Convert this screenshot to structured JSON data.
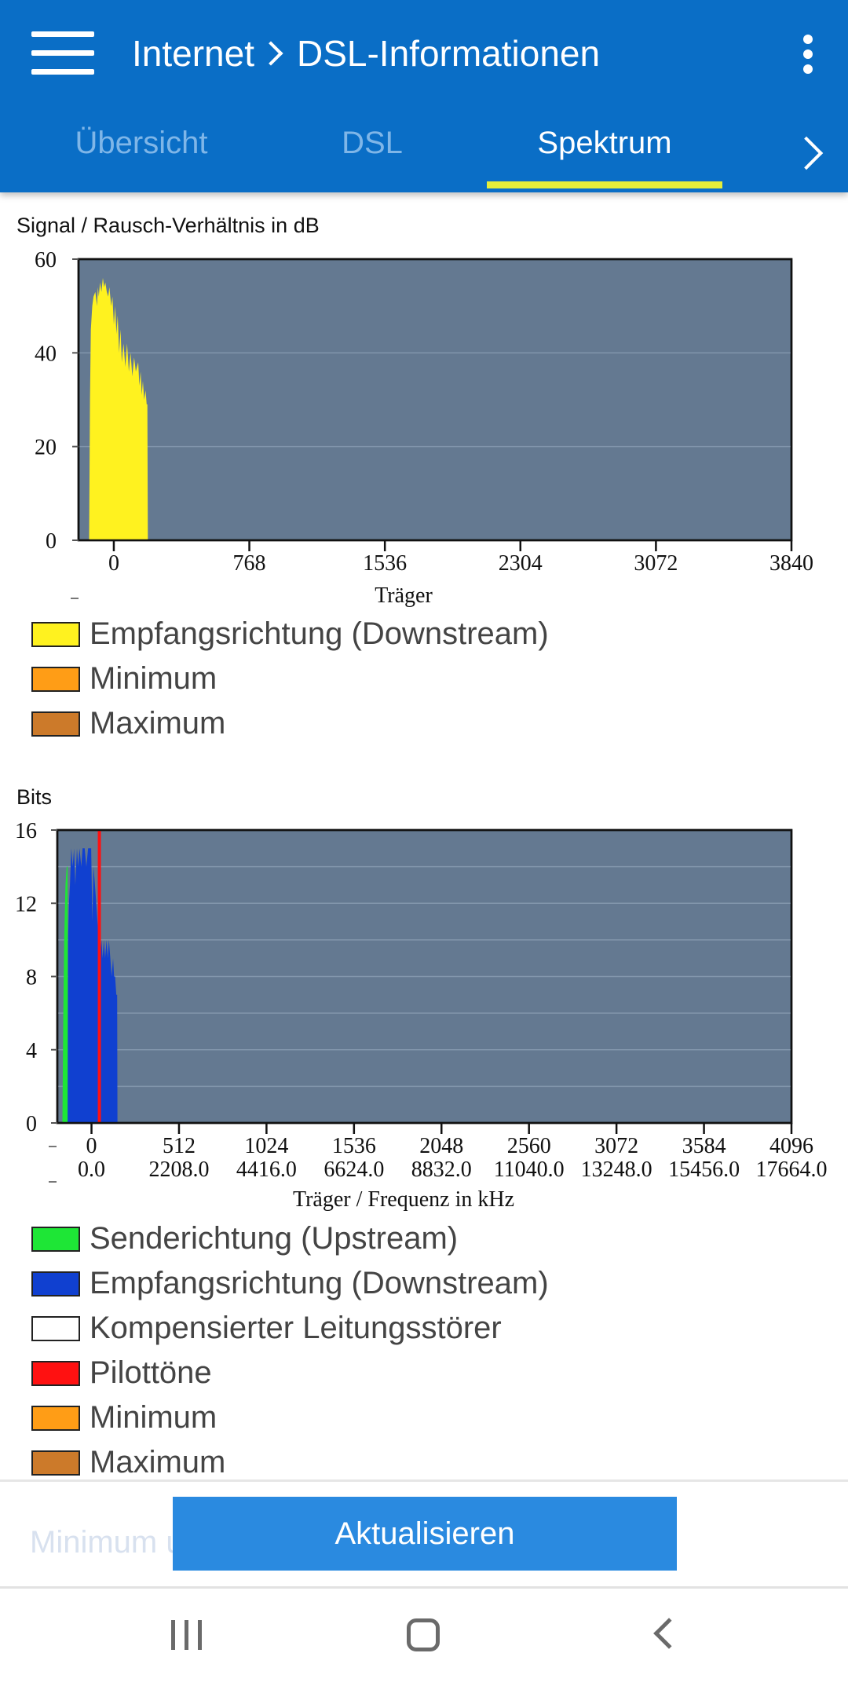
{
  "header": {
    "breadcrumb": [
      "Internet",
      "DSL-Informationen"
    ],
    "tabs": [
      {
        "label": "Übersicht",
        "active": false
      },
      {
        "label": "DSL",
        "active": false
      },
      {
        "label": "Spektrum",
        "active": true
      }
    ]
  },
  "chart_snr": {
    "ylabel": "Signal / Rausch-Verhältnis in dB",
    "xlabel": "Träger",
    "legend": [
      {
        "label": "Empfangsrichtung (Downstream)",
        "color": "#fff21f"
      },
      {
        "label": "Minimum",
        "color": "#ff9d16"
      },
      {
        "label": "Maximum",
        "color": "#cc7a2a"
      }
    ]
  },
  "chart_bits": {
    "ylabel": "Bits",
    "xlabel": "Träger / Frequenz in kHz",
    "legend": [
      {
        "label": "Senderichtung (Upstream)",
        "color": "#1ee636"
      },
      {
        "label": "Empfangsrichtung (Downstream)",
        "color": "#1040d0"
      },
      {
        "label": "Kompensierter Leitungsstörer",
        "color": "#ffffff"
      },
      {
        "label": "Pilottöne",
        "color": "#ff1111"
      },
      {
        "label": "Minimum",
        "color": "#ff9d16"
      },
      {
        "label": "Maximum",
        "color": "#cc7a2a"
      }
    ]
  },
  "chart_data": [
    {
      "type": "area",
      "ylabel": "Signal / Rausch-Verhältnis in dB",
      "xlabel": "Träger",
      "xlim": [
        -200,
        3840
      ],
      "ylim": [
        0,
        60
      ],
      "xticks": [
        0,
        768,
        1536,
        2304,
        3072,
        3840
      ],
      "yticks": [
        0,
        20,
        40,
        60
      ],
      "plot_bg": "#647991",
      "series": [
        {
          "name": "Empfangsrichtung (Downstream)",
          "color": "#fff21f",
          "x": [
            -140,
            -135,
            -130,
            -122,
            -115,
            -105,
            -95,
            -90,
            -85,
            -78,
            -70,
            -62,
            -55,
            -48,
            -40,
            -32,
            -25,
            -15,
            -8,
            0,
            8,
            15,
            22,
            30,
            38,
            45,
            55,
            65,
            75,
            85,
            95,
            105,
            115,
            125,
            138,
            145,
            152,
            158,
            165,
            172,
            180,
            186,
            190,
            193
          ],
          "y": [
            0,
            30,
            45,
            50,
            52,
            53,
            50,
            54,
            52,
            55,
            53,
            56,
            54,
            55,
            53,
            52,
            54,
            50,
            52,
            46,
            50,
            44,
            48,
            40,
            45,
            38,
            42,
            37,
            42,
            36,
            40,
            35,
            39,
            36,
            38,
            33,
            36,
            31,
            34,
            30,
            32,
            29,
            29,
            0
          ]
        }
      ]
    },
    {
      "type": "area",
      "ylabel": "Bits",
      "xlabel": "Träger / Frequenz in kHz",
      "xlim": [
        -200,
        4096
      ],
      "ylim": [
        0,
        16
      ],
      "xticks": [
        0,
        512,
        1024,
        1536,
        2048,
        2560,
        3072,
        3584,
        4096
      ],
      "xtick_labels": [
        [
          "0",
          "0.0"
        ],
        [
          "512",
          "2208.0"
        ],
        [
          "1024",
          "4416.0"
        ],
        [
          "1536",
          "6624.0"
        ],
        [
          "2048",
          "8832.0"
        ],
        [
          "2560",
          "11040.0"
        ],
        [
          "3072",
          "13248.0"
        ],
        [
          "3584",
          "15456.0"
        ],
        [
          "4096",
          "17664.0"
        ]
      ],
      "yticks": [
        0,
        4,
        8,
        12,
        16
      ],
      "plot_bg": "#647991",
      "series": [
        {
          "name": "Senderichtung (Upstream)",
          "color": "#1ee636",
          "x": [
            -170,
            -165,
            -160,
            -152,
            -145,
            -140,
            -138
          ],
          "y": [
            0,
            6,
            10,
            13,
            14,
            14,
            0
          ]
        },
        {
          "name": "Empfangsrichtung (Downstream)",
          "color": "#1040d0",
          "x": [
            -140,
            -137,
            -132,
            -126,
            -118,
            -110,
            -102,
            -95,
            -85,
            -78,
            -70,
            -60,
            -52,
            -40,
            -30,
            -20,
            -10,
            -2,
            5,
            12,
            20,
            28,
            35,
            42,
            50,
            58,
            65,
            72,
            80,
            88,
            95,
            102,
            110,
            118,
            126,
            132,
            138,
            145,
            150,
            152
          ],
          "y": [
            0,
            10,
            12,
            13,
            15,
            14,
            15,
            13,
            15,
            14,
            15,
            14,
            15,
            15,
            14,
            15,
            15,
            15,
            11,
            14,
            13,
            12,
            11,
            10,
            9,
            10,
            9,
            10,
            9,
            10,
            9,
            10,
            9,
            8,
            9,
            8,
            8,
            7,
            7,
            0
          ]
        },
        {
          "name": "Pilottöne",
          "color": "#ff1111",
          "type": "line",
          "x": [
            46
          ],
          "y": [
            16
          ]
        }
      ]
    }
  ],
  "footer": {
    "faded_text": "Minimum u",
    "update_button": "Aktualisieren"
  }
}
